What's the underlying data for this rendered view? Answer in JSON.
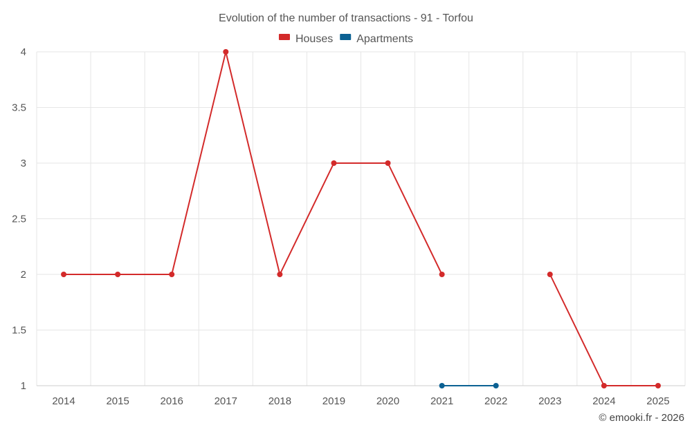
{
  "chart_data": {
    "type": "line",
    "title": "Evolution of the number of transactions - 91 - Torfou",
    "xlabel": "",
    "ylabel": "",
    "categories": [
      "2014",
      "2015",
      "2016",
      "2017",
      "2018",
      "2019",
      "2020",
      "2021",
      "2022",
      "2023",
      "2024",
      "2025"
    ],
    "y_ticks": [
      "1",
      "1.5",
      "2",
      "2.5",
      "3",
      "3.5",
      "4"
    ],
    "ylim": [
      1,
      4
    ],
    "grid": true,
    "legend_position": "top-center",
    "series": [
      {
        "name": "Houses",
        "color": "#d32a2a",
        "values": [
          2,
          2,
          2,
          4,
          2,
          3,
          3,
          2,
          null,
          2,
          1,
          1
        ]
      },
      {
        "name": "Apartments",
        "color": "#0b6193",
        "values": [
          null,
          null,
          null,
          null,
          null,
          null,
          null,
          1,
          1,
          null,
          null,
          null
        ]
      }
    ]
  },
  "credit": "© emooki.fr - 2026"
}
